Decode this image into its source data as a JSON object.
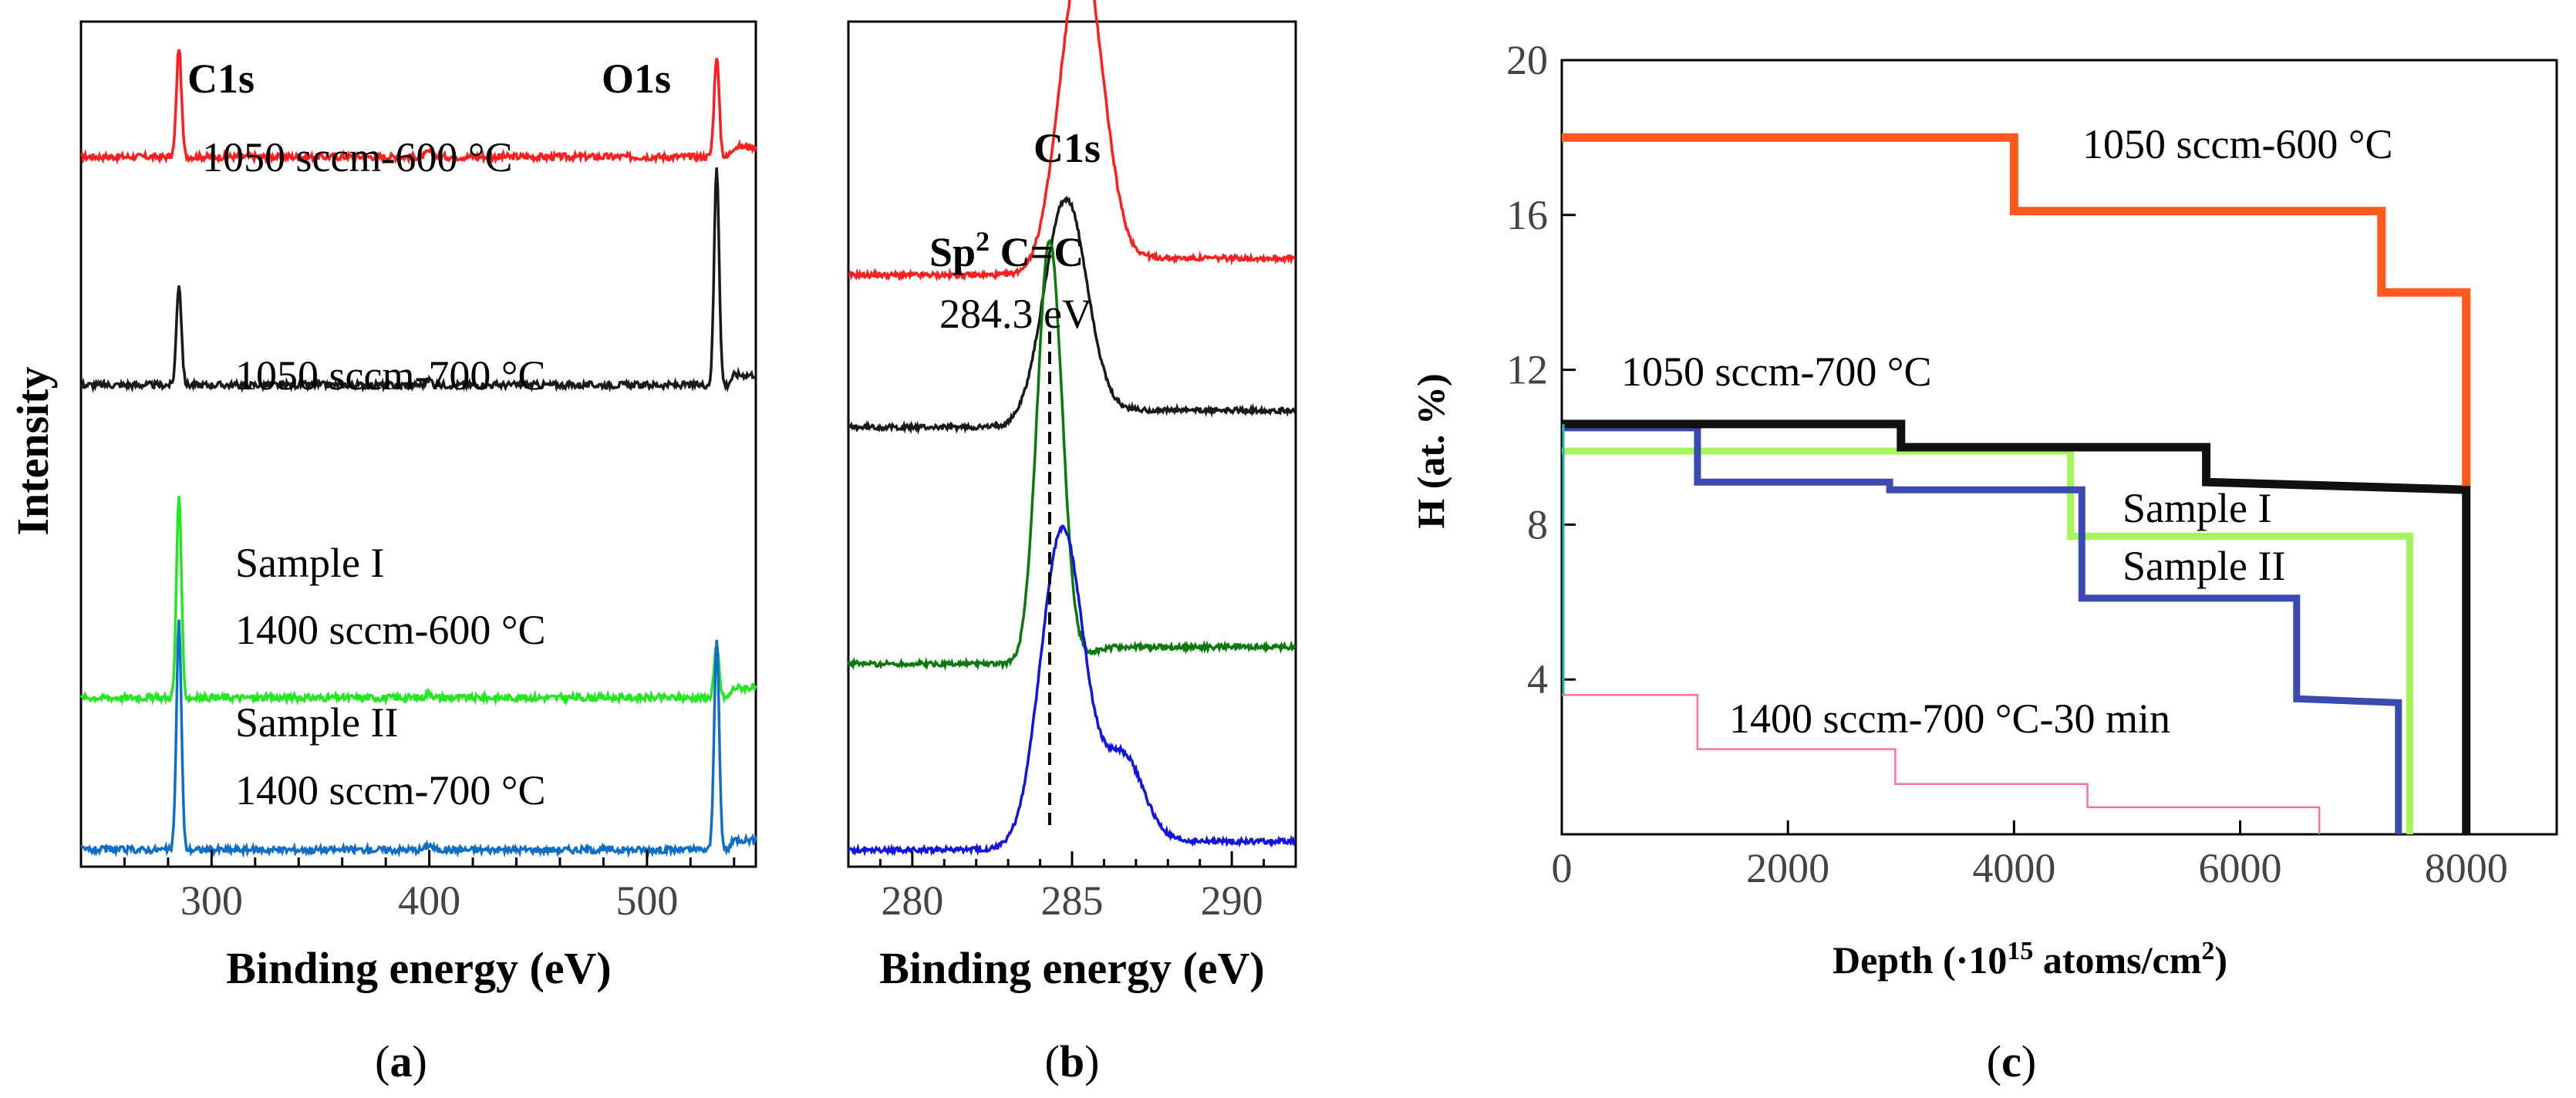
{
  "chart_data": [
    {
      "type": "line",
      "panel_label": "(a)",
      "xlabel": "Binding energy (eV)",
      "ylabel": "Intensity",
      "xlim": [
        240,
        550
      ],
      "xticks": [
        300,
        400,
        500
      ],
      "peak_labels": [
        "C1s",
        "O1s"
      ],
      "series": [
        {
          "name": "1050 sccm-600 °C",
          "labels": [
            "1050 sccm-600 °C"
          ],
          "color": "#ff1e1e",
          "offset": 0.84,
          "c1s_height": 0.13,
          "o1s_height": 0.12
        },
        {
          "name": "1050 sccm-700 °C",
          "labels": [
            "1050 sccm-700 °C"
          ],
          "color": "#1a1a1a",
          "offset": 0.57,
          "c1s_height": 0.12,
          "o1s_height": 0.26
        },
        {
          "name": "Sample I",
          "labels": [
            "Sample I",
            "1400 sccm-600 °C"
          ],
          "color": "#22e822",
          "offset": 0.2,
          "c1s_height": 0.24,
          "o1s_height": 0.06
        },
        {
          "name": "Sample II",
          "labels": [
            "Sample II",
            "1400 sccm-700 °C"
          ],
          "color": "#0f6fc8",
          "offset": 0.02,
          "c1s_height": 0.27,
          "o1s_height": 0.25
        }
      ]
    },
    {
      "type": "line",
      "panel_label": "(b)",
      "title": "C1s",
      "xlabel": "Binding energy (eV)",
      "xlim": [
        278,
        292
      ],
      "xticks": [
        280,
        285,
        290
      ],
      "annotation": {
        "label_base": "Sp",
        "label_sup": "2",
        "label_rest": " C=C",
        "value_label": "284.3 eV",
        "x": 284.3
      },
      "series": [
        {
          "name": "1050 sccm-600 °C",
          "color": "#ff1e1e",
          "offset": 0.7,
          "peak_x": 285.3,
          "height": 0.38
        },
        {
          "name": "1050 sccm-700 °C",
          "color": "#1a1a1a",
          "offset": 0.52,
          "peak_x": 284.8,
          "height": 0.27
        },
        {
          "name": "Sample I",
          "color": "#0a7a0a",
          "offset": 0.24,
          "peak_x": 284.3,
          "height": 0.5
        },
        {
          "name": "Sample II",
          "color": "#1414e0",
          "offset": 0.02,
          "peak_x": 284.7,
          "height": 0.38
        }
      ]
    },
    {
      "type": "line",
      "panel_label": "(c)",
      "xlabel_base": "Depth (·10",
      "xlabel_sup": "15",
      "xlabel_mid": " atoms/cm",
      "xlabel_sup2": "2",
      "xlabel_end": ")",
      "ylabel": "H (at. %)",
      "xlim": [
        0,
        8800
      ],
      "ylim": [
        0,
        20
      ],
      "xticks": [
        0,
        2000,
        4000,
        6000,
        8000
      ],
      "yticks": [
        4,
        8,
        12,
        16,
        20
      ],
      "series": [
        {
          "name": "1050 sccm-600 °C",
          "color": "#ff5a1e",
          "x": [
            0,
            4000,
            4000,
            7250,
            7250,
            8000,
            8000
          ],
          "y": [
            18,
            18,
            16.1,
            16.1,
            14,
            14,
            9
          ]
        },
        {
          "name": "1050 sccm-700 °C",
          "color": "#111111",
          "x": [
            0,
            3000,
            3000,
            5700,
            5700,
            8000,
            8000
          ],
          "y": [
            10.6,
            10.6,
            10,
            10,
            9.1,
            8.9,
            0
          ]
        },
        {
          "name": "Sample I",
          "color": "#a6f55a",
          "x": [
            0,
            4500,
            4500,
            7500,
            7500
          ],
          "y": [
            9.9,
            9.9,
            7.7,
            7.7,
            0
          ]
        },
        {
          "name": "Sample II",
          "color": "#3a4ab0",
          "x": [
            0,
            1200,
            1200,
            2900,
            2900,
            4600,
            4600,
            6500,
            6500,
            7400,
            7400
          ],
          "y": [
            10.5,
            10.5,
            9.1,
            9.1,
            8.9,
            8.9,
            6.1,
            6.1,
            3.5,
            3.4,
            0
          ]
        },
        {
          "name": "1400 sccm-700 °C-30 min",
          "color": "#ff6fa0",
          "x": [
            0,
            1200,
            1200,
            2950,
            2950,
            4650,
            4650,
            6700,
            6700
          ],
          "y": [
            3.6,
            3.6,
            2.2,
            2.2,
            1.3,
            1.3,
            0.7,
            0.7,
            0
          ]
        }
      ],
      "labels": {
        "s600": "1050 sccm-600 °C",
        "s700": "1050 sccm-700 °C",
        "sampleI": "Sample I",
        "sampleII": "Sample II",
        "s1400": "1400 sccm-700 °C-30 min"
      }
    }
  ]
}
